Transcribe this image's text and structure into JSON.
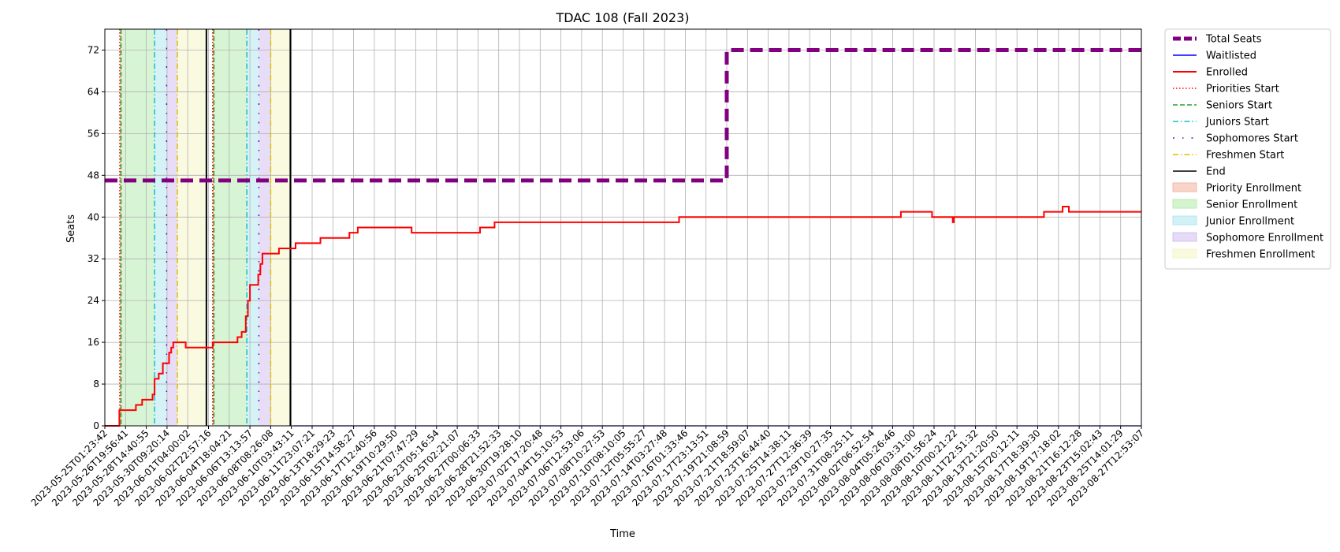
{
  "chart_data": {
    "type": "line",
    "title": "TDAC 108 (Fall 2023)",
    "xlabel": "Time",
    "ylabel": "Seats",
    "ylim": [
      0,
      76
    ],
    "yticks": [
      0,
      8,
      16,
      24,
      32,
      40,
      48,
      56,
      64,
      72
    ],
    "grid": true,
    "legend_position": "outside right, top",
    "x_tick_labels": [
      "2023-05-25T01:23:42",
      "2023-05-26T19:56:41",
      "2023-05-28T14:40:55",
      "2023-05-30T09:20:14",
      "2023-06-01T04:00:02",
      "2023-06-02T22:57:16",
      "2023-06-04T18:04:21",
      "2023-06-06T13:13:57",
      "2023-06-08T08:26:08",
      "2023-06-10T03:43:11",
      "2023-06-11T23:07:21",
      "2023-06-13T18:29:23",
      "2023-06-15T14:58:27",
      "2023-06-17T12:40:56",
      "2023-06-19T10:29:50",
      "2023-06-21T07:47:29",
      "2023-06-23T05:16:54",
      "2023-06-25T02:21:07",
      "2023-06-27T00:06:33",
      "2023-06-28T21:52:33",
      "2023-06-30T19:28:10",
      "2023-07-02T17:20:48",
      "2023-07-04T15:10:53",
      "2023-07-06T12:53:06",
      "2023-07-08T10:27:53",
      "2023-07-10T08:10:05",
      "2023-07-12T05:55:27",
      "2023-07-14T03:27:48",
      "2023-07-16T01:33:46",
      "2023-07-17T23:13:51",
      "2023-07-19T21:08:59",
      "2023-07-21T18:59:07",
      "2023-07-23T16:44:40",
      "2023-07-25T14:38:11",
      "2023-07-27T12:36:39",
      "2023-07-29T10:27:35",
      "2023-07-31T08:25:11",
      "2023-08-02T06:52:54",
      "2023-08-04T05:26:46",
      "2023-08-06T03:31:00",
      "2023-08-08T01:56:24",
      "2023-08-10T00:21:22",
      "2023-08-11T22:51:32",
      "2023-08-13T21:20:50",
      "2023-08-15T20:12:11",
      "2023-08-17T18:39:30",
      "2023-08-19T17:18:02",
      "2023-08-21T16:12:28",
      "2023-08-23T15:02:43",
      "2023-08-25T14:01:29",
      "2023-08-27T12:53:07"
    ],
    "series": [
      {
        "name": "Total Seats",
        "color": "#800080",
        "style": "dashed",
        "steps": [
          [
            0,
            47
          ],
          [
            30,
            47
          ],
          [
            30,
            72
          ],
          [
            50,
            72
          ]
        ]
      },
      {
        "name": "Waitlisted",
        "color": "#0000ff",
        "style": "solid",
        "steps": [
          [
            9.1,
            0
          ],
          [
            50,
            0
          ]
        ]
      },
      {
        "name": "Enrolled",
        "color": "#ff0000",
        "style": "solid",
        "steps": [
          [
            0,
            0
          ],
          [
            0.7,
            0
          ],
          [
            0.7,
            3
          ],
          [
            1.5,
            3
          ],
          [
            1.5,
            4
          ],
          [
            1.8,
            4
          ],
          [
            1.8,
            5
          ],
          [
            2.3,
            5
          ],
          [
            2.3,
            6
          ],
          [
            2.4,
            6
          ],
          [
            2.4,
            9
          ],
          [
            2.6,
            9
          ],
          [
            2.6,
            10
          ],
          [
            2.8,
            10
          ],
          [
            2.8,
            12
          ],
          [
            3.1,
            12
          ],
          [
            3.1,
            14
          ],
          [
            3.2,
            14
          ],
          [
            3.2,
            15
          ],
          [
            3.3,
            15
          ],
          [
            3.3,
            16
          ],
          [
            3.9,
            16
          ],
          [
            3.9,
            15
          ],
          [
            5.2,
            15
          ],
          [
            5.2,
            16
          ],
          [
            6.4,
            16
          ],
          [
            6.4,
            17
          ],
          [
            6.6,
            17
          ],
          [
            6.6,
            18
          ],
          [
            6.8,
            18
          ],
          [
            6.8,
            21
          ],
          [
            6.9,
            21
          ],
          [
            6.9,
            24
          ],
          [
            7.0,
            24
          ],
          [
            7.0,
            27
          ],
          [
            7.4,
            27
          ],
          [
            7.4,
            29
          ],
          [
            7.5,
            29
          ],
          [
            7.5,
            31
          ],
          [
            7.6,
            31
          ],
          [
            7.6,
            33
          ],
          [
            8.4,
            33
          ],
          [
            8.4,
            34
          ],
          [
            9.2,
            34
          ],
          [
            9.2,
            35
          ],
          [
            10.4,
            35
          ],
          [
            10.4,
            36
          ],
          [
            11.8,
            36
          ],
          [
            11.8,
            37
          ],
          [
            12.2,
            37
          ],
          [
            12.2,
            38
          ],
          [
            14.8,
            38
          ],
          [
            14.8,
            37
          ],
          [
            18.1,
            37
          ],
          [
            18.1,
            38
          ],
          [
            18.8,
            38
          ],
          [
            18.8,
            39
          ],
          [
            27.7,
            39
          ],
          [
            27.7,
            40
          ],
          [
            38.4,
            40
          ],
          [
            38.4,
            41
          ],
          [
            39.9,
            41
          ],
          [
            39.9,
            40
          ],
          [
            40.9,
            40
          ],
          [
            40.9,
            39
          ],
          [
            40.95,
            39
          ],
          [
            40.95,
            40
          ],
          [
            45.3,
            40
          ],
          [
            45.3,
            41
          ],
          [
            46.2,
            41
          ],
          [
            46.2,
            42
          ],
          [
            46.5,
            42
          ],
          [
            46.5,
            41
          ],
          [
            50,
            41
          ]
        ]
      },
      {
        "name": "Priorities Start",
        "color": "#ff0000",
        "style": "dotted",
        "vlines": [
          0.72,
          5.2
        ]
      },
      {
        "name": "Seniors Start",
        "color": "#2ca02c",
        "style": "dashed",
        "vlines": [
          0.78,
          5.26
        ]
      },
      {
        "name": "Juniors Start",
        "color": "#17becf",
        "style": "dashdot",
        "vlines": [
          2.4,
          6.85
        ]
      },
      {
        "name": "Sophomores Start",
        "color": "#6a0dad",
        "style": "loosely-dashdot",
        "vlines": [
          2.98,
          7.43
        ]
      },
      {
        "name": "Freshmen Start",
        "color": "#e0c000",
        "style": "dashdot",
        "vlines": [
          3.5,
          8.0
        ]
      },
      {
        "name": "End",
        "color": "#000000",
        "style": "solid",
        "vlines": [
          4.9,
          8.95
        ]
      }
    ],
    "spans": [
      {
        "name": "Priority Enrollment",
        "color": "#f4b8a6",
        "ranges": [
          [
            0.72,
            0.78
          ],
          [
            5.2,
            5.26
          ]
        ]
      },
      {
        "name": "Senior Enrollment",
        "color": "#b7ecb0",
        "ranges": [
          [
            0.78,
            2.4
          ],
          [
            5.26,
            6.85
          ]
        ]
      },
      {
        "name": "Junior Enrollment",
        "color": "#b3e8f0",
        "ranges": [
          [
            2.4,
            2.98
          ],
          [
            6.85,
            7.43
          ]
        ]
      },
      {
        "name": "Sophomore Enrollment",
        "color": "#d4c1f1",
        "ranges": [
          [
            2.98,
            3.5
          ],
          [
            7.43,
            8.0
          ]
        ]
      },
      {
        "name": "Freshmen Enrollment",
        "color": "#f5f5c8",
        "ranges": [
          [
            3.5,
            4.9
          ],
          [
            8.0,
            8.95
          ]
        ]
      }
    ]
  }
}
